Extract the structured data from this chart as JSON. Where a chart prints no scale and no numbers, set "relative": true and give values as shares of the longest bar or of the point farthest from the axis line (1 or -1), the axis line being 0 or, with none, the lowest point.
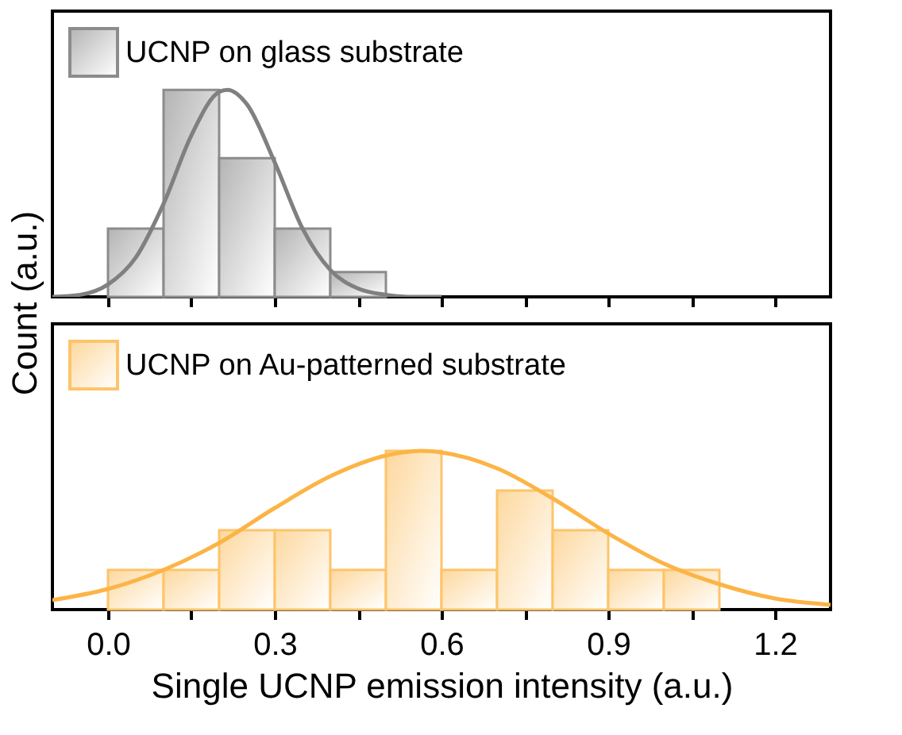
{
  "chart_data": [
    {
      "type": "histogram",
      "relative": true,
      "bins": [
        0.0,
        0.1,
        0.2,
        0.3,
        0.4,
        0.5
      ],
      "xlim": [
        -0.1,
        1.3
      ],
      "xticks": [
        {
          "value": 0.0,
          "label": null
        },
        {
          "value": 0.15,
          "label": null
        },
        {
          "value": 0.3,
          "label": null
        },
        {
          "value": 0.45,
          "label": null
        },
        {
          "value": 0.6,
          "label": null
        },
        {
          "value": 0.75,
          "label": null
        },
        {
          "value": 0.9,
          "label": null
        },
        {
          "value": 1.05,
          "label": null
        },
        {
          "value": 1.2,
          "label": null
        }
      ],
      "tick_labels": false,
      "legend": "top left",
      "ylabel": "Count (a.u.)",
      "series": [
        {
          "name": "UCNP on glass substrate",
          "color": "#8c8c8c",
          "values": [
            0.33,
            1.0,
            0.67,
            0.33,
            0.12
          ]
        },
        {
          "type": "line",
          "color": "#808080",
          "x": [
            -0.1,
            -0.05,
            0.0,
            0.05,
            0.1,
            0.15,
            0.2,
            0.215,
            0.25,
            0.3,
            0.35,
            0.4,
            0.45,
            0.5,
            0.55,
            0.6
          ],
          "values": [
            0.0,
            0.01,
            0.06,
            0.19,
            0.45,
            0.78,
            0.99,
            1.0,
            0.93,
            0.65,
            0.33,
            0.13,
            0.04,
            0.01,
            0.0,
            0.0
          ]
        }
      ]
    },
    {
      "type": "histogram",
      "relative": true,
      "bins": [
        0.0,
        0.1,
        0.2,
        0.3,
        0.4,
        0.5,
        0.6,
        0.7,
        0.8,
        0.9,
        1.0,
        1.1
      ],
      "xlim": [
        -0.1,
        1.3
      ],
      "xticks": [
        {
          "value": 0.0,
          "label": "0.0"
        },
        {
          "value": 0.15,
          "label": null
        },
        {
          "value": 0.3,
          "label": "0.3"
        },
        {
          "value": 0.45,
          "label": null
        },
        {
          "value": 0.6,
          "label": "0.6"
        },
        {
          "value": 0.75,
          "label": null
        },
        {
          "value": 0.9,
          "label": "0.9"
        },
        {
          "value": 1.05,
          "label": null
        },
        {
          "value": 1.2,
          "label": "1.2"
        }
      ],
      "tick_labels": "x",
      "legend": "top left",
      "xlabel": "Single UCNP emission intensity (a.u.)",
      "series": [
        {
          "name": "UCNP on Au-patterned substrate",
          "color": "#fdc46a",
          "values": [
            0.25,
            0.25,
            0.5,
            0.5,
            0.25,
            1.0,
            0.25,
            0.75,
            0.5,
            0.25,
            0.25
          ]
        },
        {
          "type": "line",
          "color": "#fbb445",
          "x": [
            -0.1,
            0.0,
            0.1,
            0.2,
            0.3,
            0.4,
            0.5,
            0.565,
            0.6,
            0.7,
            0.8,
            0.9,
            1.0,
            1.1,
            1.2,
            1.3
          ],
          "values": [
            0.06,
            0.13,
            0.25,
            0.42,
            0.64,
            0.84,
            0.97,
            1.0,
            0.99,
            0.89,
            0.7,
            0.48,
            0.29,
            0.16,
            0.07,
            0.03
          ]
        }
      ]
    }
  ]
}
